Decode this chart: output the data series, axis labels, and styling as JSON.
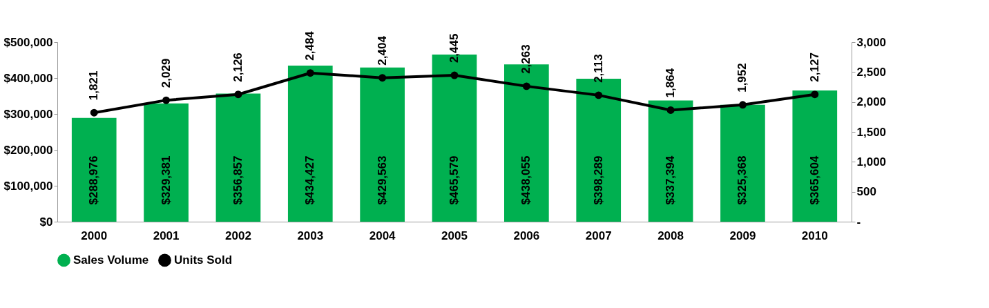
{
  "chart_data": {
    "type": "bar",
    "categories": [
      "2000",
      "2001",
      "2002",
      "2003",
      "2004",
      "2005",
      "2006",
      "2007",
      "2008",
      "2009",
      "2010"
    ],
    "series": [
      {
        "name": "Sales Volume",
        "color": "#00b050",
        "values": [
          288976,
          329381,
          356857,
          434427,
          429563,
          465579,
          438055,
          398289,
          337394,
          325368,
          365604
        ],
        "value_labels": [
          "$288,976",
          "$329,381",
          "$356,857",
          "$434,427",
          "$429,563",
          "$465,579",
          "$438,055",
          "$398,289",
          "$337,394",
          "$325,368",
          "$365,604"
        ]
      },
      {
        "name": "Units Sold",
        "type": "line",
        "axis": "y2",
        "color": "#000000",
        "marker": "circle",
        "values": [
          1821,
          2029,
          2126,
          2484,
          2404,
          2445,
          2263,
          2113,
          1864,
          1952,
          2127
        ],
        "value_labels": [
          "1,821",
          "2,029",
          "2,126",
          "2,484",
          "2,404",
          "2,445",
          "2,263",
          "2,113",
          "1,864",
          "1,952",
          "2,127"
        ]
      }
    ],
    "ylim": [
      0,
      500000
    ],
    "yticks": [
      {
        "value": 0,
        "label": "$0"
      },
      {
        "value": 100000,
        "label": "$100,000"
      },
      {
        "value": 200000,
        "label": "$200,000"
      },
      {
        "value": 300000,
        "label": "$300,000"
      },
      {
        "value": 400000,
        "label": "$400,000"
      },
      {
        "value": 500000,
        "label": "$500,000"
      }
    ],
    "y2lim": [
      0,
      3000
    ],
    "y2ticks": [
      {
        "value": 0,
        "label": "-"
      },
      500,
      {
        "value": 1000,
        "label": "1,000"
      },
      {
        "value": 1500,
        "label": "1,500"
      },
      {
        "value": 2000,
        "label": "2,000"
      },
      {
        "value": 2500,
        "label": "2,500"
      },
      {
        "value": 3000,
        "label": "3,000"
      }
    ],
    "grid": false,
    "legend": "bottom",
    "data_labels": true
  }
}
